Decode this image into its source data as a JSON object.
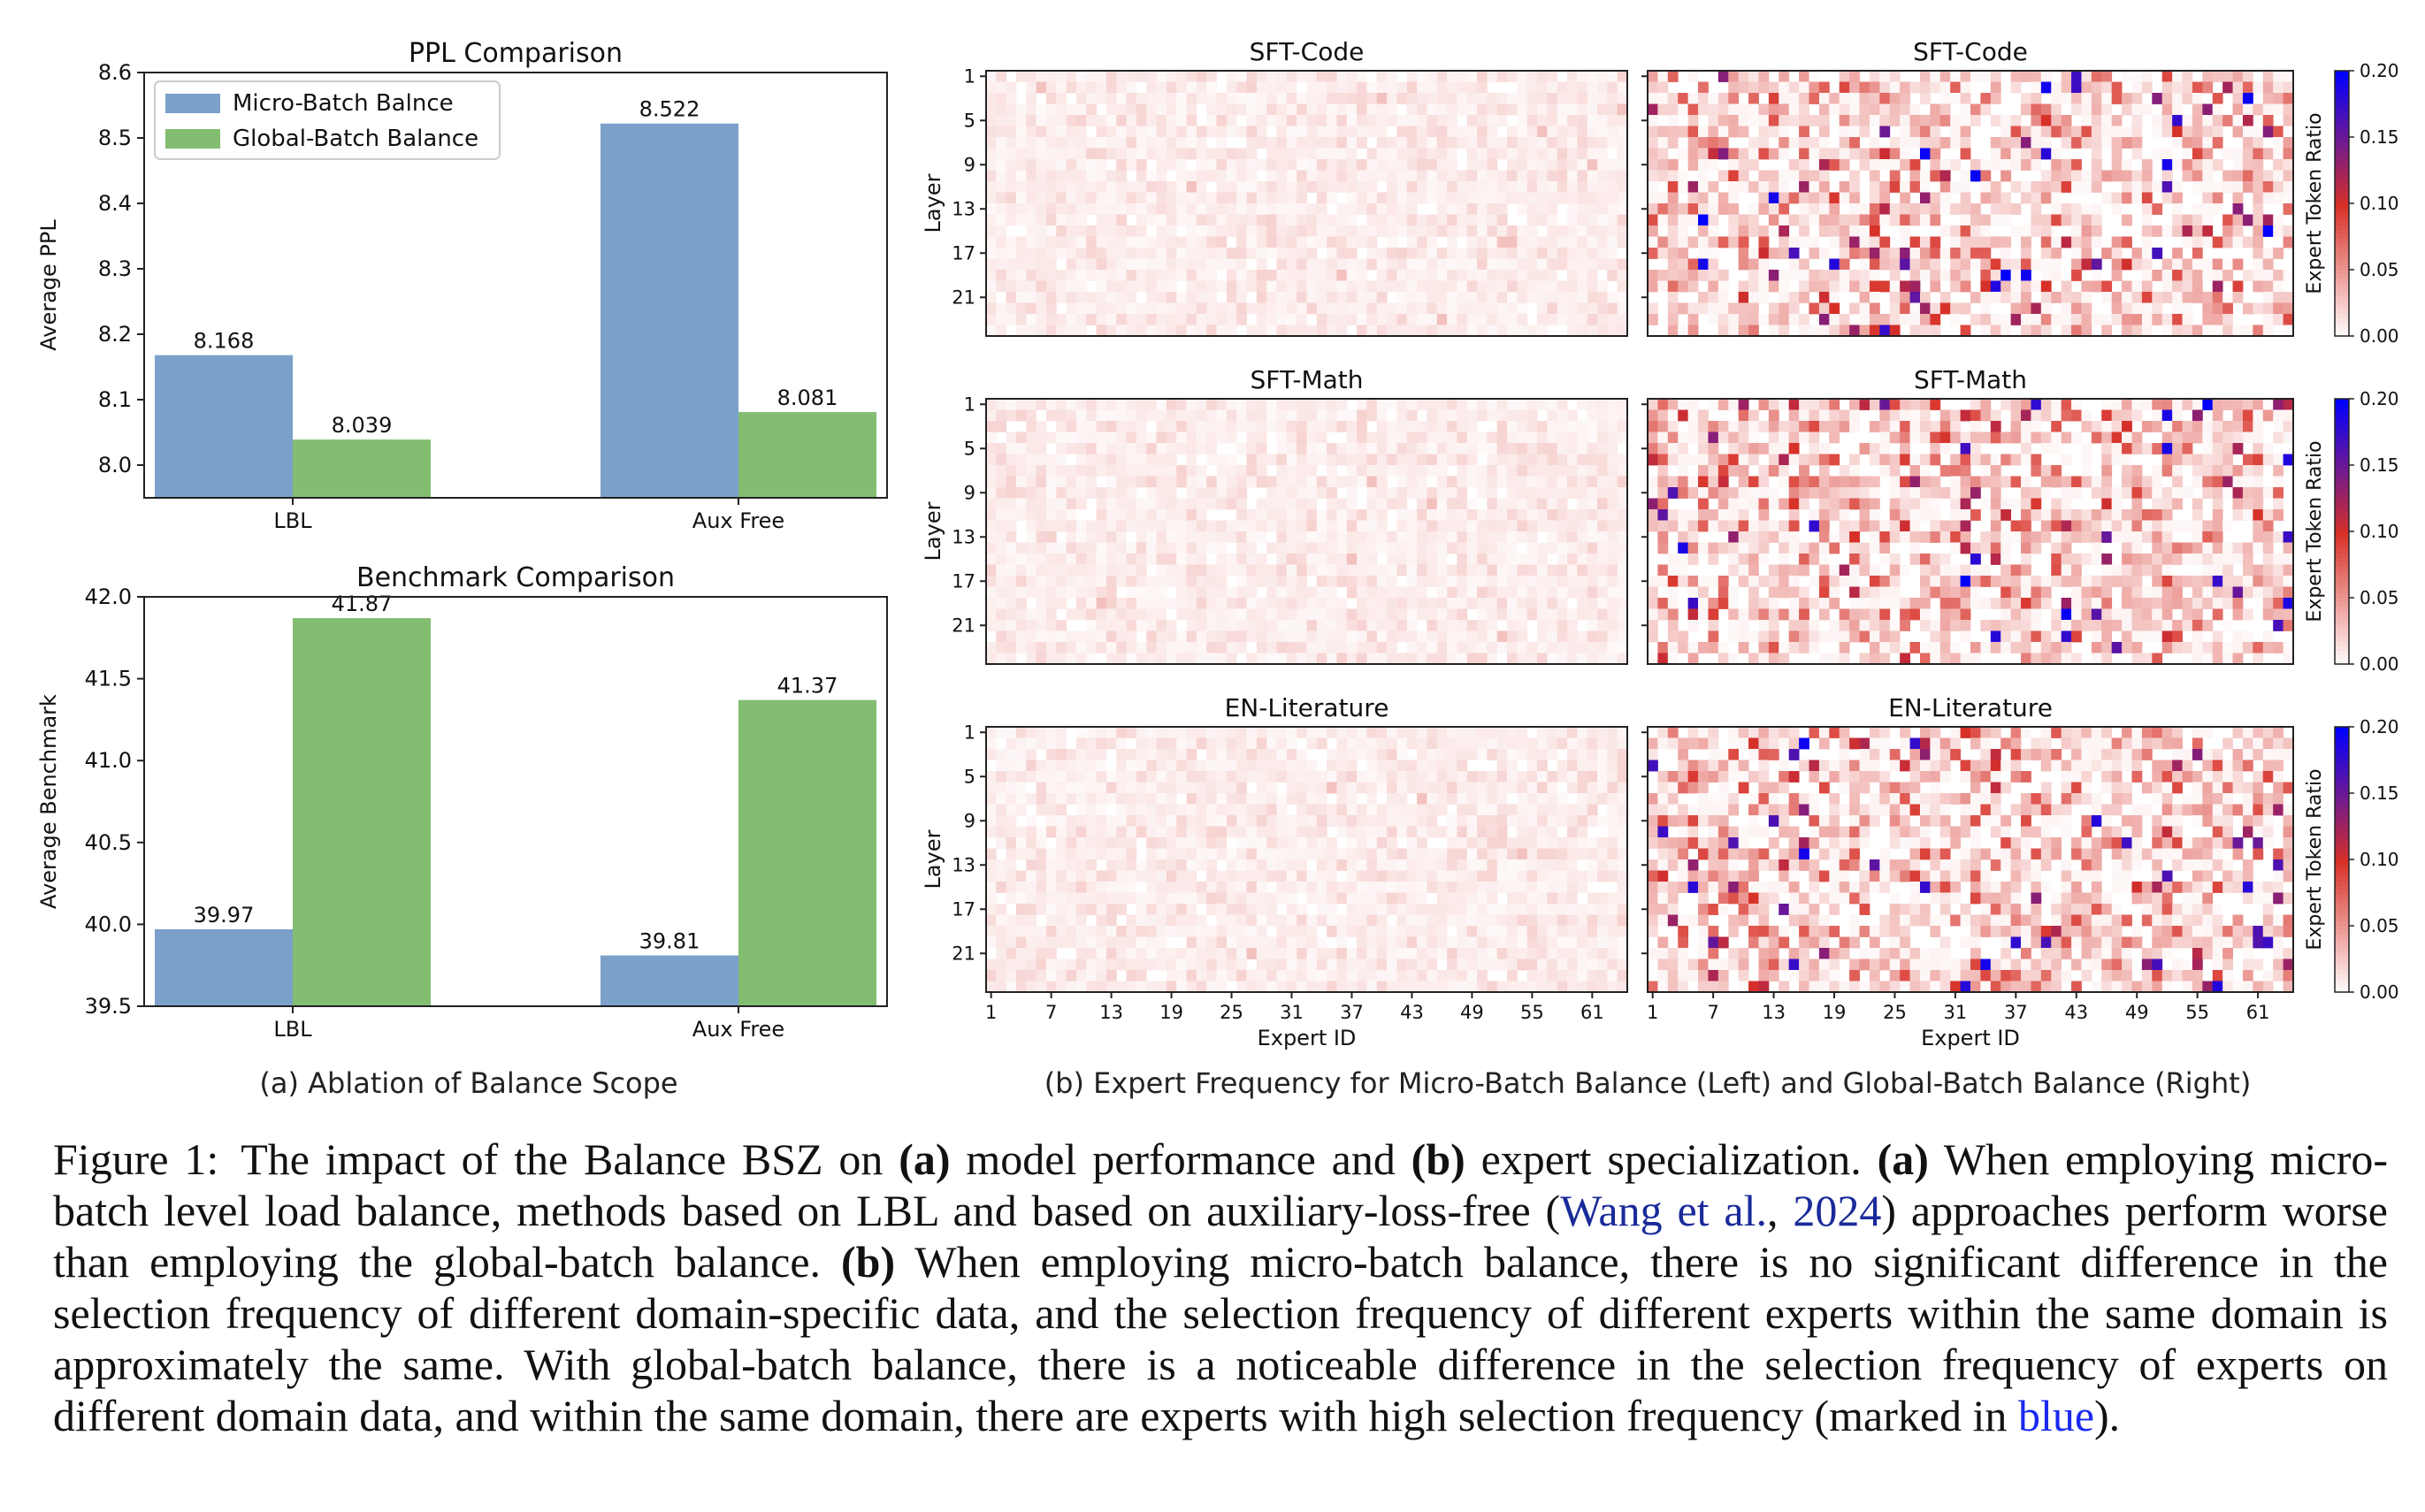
{
  "sublabels": {
    "a": "(a) Ablation of Balance Scope",
    "b": "(b) Expert Frequency for Micro-Batch Balance (Left) and Global-Batch Balance (Right)"
  },
  "caption": {
    "label": "Figure 1:",
    "p1": "The impact of the Balance BSZ on ",
    "b1": "(a)",
    "p2": " model performance and ",
    "b2": "(b)",
    "p3": " expert specialization. ",
    "b3": "(a)",
    "p4": " When employing micro-batch level load balance, methods based on LBL and based on auxiliary-loss-free (",
    "cite_author": "Wang et al.",
    "cite_sep": ", ",
    "cite_year": "2024",
    "p5": ") approaches perform worse than employing the global-batch balance. ",
    "b4": "(b)",
    "p6": " When employing micro-batch balance, there is no significant difference in the selection frequency of different domain-specific data, and the selection frequency of different experts within the same domain is approximately the same. With global-batch balance, there is a noticeable difference in the selection frequency of experts on different domain data, and within the same domain, there are experts with high selection frequency (marked in ",
    "blue_word": "blue",
    "p7": ")."
  },
  "colors": {
    "micro": "#7ba0c9",
    "global": "#82bd72",
    "heat_low": "#ffffff",
    "heat_mid": "#d73027",
    "heat_high": "#0000ff"
  },
  "chart_data": [
    {
      "type": "bar",
      "title": "PPL Comparison",
      "ylabel": "Average PPL",
      "xlabel": "",
      "categories": [
        "LBL",
        "Aux Free"
      ],
      "series": [
        {
          "name": "Micro-Batch Balnce",
          "values": [
            8.168,
            8.522
          ],
          "labels": [
            "8.168",
            "8.522"
          ]
        },
        {
          "name": "Global-Batch Balance",
          "values": [
            8.039,
            8.081
          ],
          "labels": [
            "8.039",
            "8.081"
          ]
        }
      ],
      "ylim": [
        7.95,
        8.6
      ],
      "yticks": [
        "8.0",
        "8.1",
        "8.2",
        "8.3",
        "8.4",
        "8.5",
        "8.6"
      ],
      "legend": "top-left"
    },
    {
      "type": "bar",
      "title": "Benchmark Comparison",
      "ylabel": "Average Benchmark",
      "xlabel": "",
      "categories": [
        "LBL",
        "Aux Free"
      ],
      "series": [
        {
          "name": "Micro-Batch Balnce",
          "values": [
            39.97,
            39.81
          ],
          "labels": [
            "39.97",
            "39.81"
          ]
        },
        {
          "name": "Global-Batch Balance",
          "values": [
            41.87,
            41.37
          ],
          "labels": [
            "41.87",
            "41.37"
          ]
        }
      ],
      "ylim": [
        39.5,
        42.0
      ],
      "yticks": [
        "39.5",
        "40.0",
        "40.5",
        "41.0",
        "41.5",
        "42.0"
      ]
    },
    {
      "type": "heatmap",
      "panels": [
        {
          "row": 0,
          "side": "micro",
          "title": "SFT-Code",
          "seed": 11,
          "intensity": "low"
        },
        {
          "row": 0,
          "side": "global",
          "title": "SFT-Code",
          "seed": 12,
          "intensity": "high"
        },
        {
          "row": 1,
          "side": "micro",
          "title": "SFT-Math",
          "seed": 21,
          "intensity": "low"
        },
        {
          "row": 1,
          "side": "global",
          "title": "SFT-Math",
          "seed": 22,
          "intensity": "high"
        },
        {
          "row": 2,
          "side": "micro",
          "title": "EN-Literature",
          "seed": 31,
          "intensity": "low"
        },
        {
          "row": 2,
          "side": "global",
          "title": "EN-Literature",
          "seed": 32,
          "intensity": "high"
        }
      ],
      "n_layers": 24,
      "n_experts": 64,
      "ylabel": "Layer",
      "xlabel": "Expert ID",
      "ytick_labels": [
        "1",
        "5",
        "9",
        "13",
        "17",
        "21"
      ],
      "xtick_labels": [
        "1",
        "7",
        "13",
        "19",
        "25",
        "31",
        "37",
        "43",
        "49",
        "55",
        "61"
      ],
      "colorbar": {
        "label": "Expert Token Ratio",
        "range": [
          0.0,
          0.2
        ],
        "ticks": [
          "0.00",
          "0.05",
          "0.10",
          "0.15",
          "0.20"
        ]
      }
    }
  ]
}
